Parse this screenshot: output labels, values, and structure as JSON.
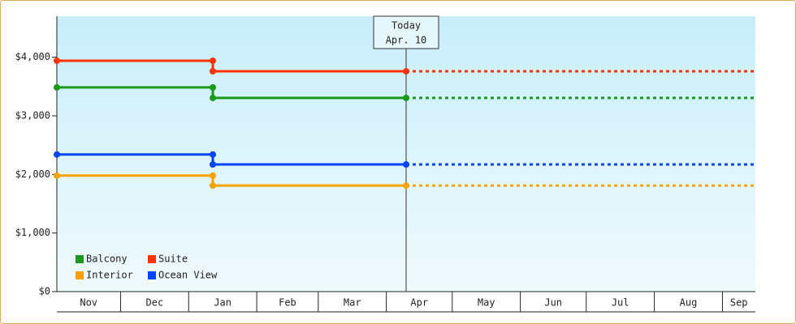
{
  "chart_data": {
    "type": "step",
    "xticks": [
      "Nov",
      "Dec",
      "Jan",
      "Feb",
      "Mar",
      "Apr",
      "May",
      "Jun",
      "Jul",
      "Aug",
      "Sep"
    ],
    "xlim": [
      "Nov 2",
      "Sep 16"
    ],
    "ylim": [
      0,
      4700
    ],
    "yticks": [
      {
        "value": 0,
        "label": "$0"
      },
      {
        "value": 1000,
        "label": "$1,000"
      },
      {
        "value": 2000,
        "label": "$2,000"
      },
      {
        "value": 3000,
        "label": "$3,000"
      },
      {
        "value": 4000,
        "label": "$4,000"
      }
    ],
    "annotation": {
      "lines": [
        "Today",
        "Apr. 10"
      ],
      "x": "Apr 10"
    },
    "projection": "dashed",
    "series": [
      {
        "name": "Balcony",
        "color": "#1a9a1a",
        "x": [
          "Nov 2",
          "Jan 12",
          "Jan 12",
          "Apr 10"
        ],
        "values": [
          3485,
          3485,
          3305,
          3305
        ]
      },
      {
        "name": "Suite",
        "color": "#ff3300",
        "x": [
          "Nov 2",
          "Jan 12",
          "Jan 12",
          "Apr 10"
        ],
        "values": [
          3940,
          3940,
          3760,
          3760
        ]
      },
      {
        "name": "Interior",
        "color": "#f5a300",
        "x": [
          "Nov 2",
          "Jan 12",
          "Jan 12",
          "Apr 10"
        ],
        "values": [
          1980,
          1980,
          1810,
          1810
        ]
      },
      {
        "name": "Ocean View",
        "color": "#0044ff",
        "x": [
          "Nov 2",
          "Jan 12",
          "Jan 12",
          "Apr 10"
        ],
        "values": [
          2340,
          2340,
          2170,
          2170
        ]
      }
    ]
  }
}
